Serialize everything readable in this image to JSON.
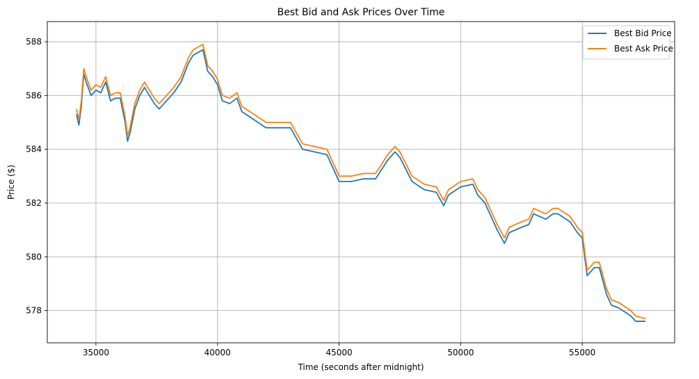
{
  "chart_data": {
    "type": "line",
    "title": "Best Bid and Ask Prices Over Time",
    "xlabel": "Time (seconds after midnight)",
    "ylabel": "Price ($)",
    "xlim": [
      33000,
      58800
    ],
    "ylim": [
      576.8,
      588.75
    ],
    "xticks": [
      35000,
      40000,
      45000,
      50000,
      55000
    ],
    "xtick_labels": [
      "35000",
      "40000",
      "45000",
      "50000",
      "55000"
    ],
    "yticks": [
      578,
      580,
      582,
      584,
      586,
      588
    ],
    "ytick_labels": [
      "578",
      "580",
      "582",
      "584",
      "586",
      "588"
    ],
    "grid": true,
    "legend_position": "top-right",
    "series": [
      {
        "name": "Best Bid Price",
        "color": "#1f77b4",
        "x": [
          34200,
          34300,
          34400,
          34500,
          34600,
          34800,
          35000,
          35200,
          35400,
          35600,
          35800,
          36000,
          36200,
          36300,
          36400,
          36600,
          36800,
          37000,
          37200,
          37400,
          37600,
          37800,
          38000,
          38200,
          38500,
          38800,
          39000,
          39200,
          39400,
          39600,
          39800,
          40000,
          40200,
          40500,
          40800,
          41000,
          41500,
          42000,
          42500,
          43000,
          43500,
          44000,
          44500,
          45000,
          45500,
          46000,
          46500,
          47000,
          47300,
          47500,
          48000,
          48500,
          49000,
          49300,
          49500,
          50000,
          50500,
          50700,
          51000,
          51500,
          51800,
          52000,
          52500,
          52800,
          53000,
          53500,
          53800,
          54000,
          54500,
          54800,
          55000,
          55200,
          55500,
          55700,
          56000,
          56200,
          56500,
          57000,
          57200,
          57600
        ],
        "values": [
          585.3,
          584.9,
          585.6,
          586.8,
          586.5,
          586.0,
          586.2,
          586.1,
          586.5,
          585.8,
          585.9,
          585.9,
          585.0,
          584.3,
          584.6,
          585.5,
          586.0,
          586.3,
          586.0,
          585.7,
          585.5,
          585.7,
          585.9,
          586.1,
          586.5,
          587.2,
          587.5,
          587.6,
          587.7,
          586.9,
          586.7,
          586.4,
          585.8,
          585.7,
          585.9,
          585.4,
          585.1,
          584.8,
          584.8,
          584.8,
          584.0,
          583.9,
          583.8,
          582.8,
          582.8,
          582.9,
          582.9,
          583.6,
          583.9,
          583.7,
          582.8,
          582.5,
          582.4,
          581.9,
          582.3,
          582.6,
          582.7,
          582.3,
          582.0,
          581.0,
          580.5,
          580.9,
          581.1,
          581.2,
          581.6,
          581.4,
          581.6,
          581.6,
          581.3,
          580.9,
          580.7,
          579.3,
          579.6,
          579.6,
          578.6,
          578.2,
          578.1,
          577.8,
          577.6,
          577.6
        ]
      },
      {
        "name": "Best Ask Price",
        "color": "#ff7f0e",
        "x": [
          34200,
          34300,
          34400,
          34500,
          34600,
          34800,
          35000,
          35200,
          35400,
          35600,
          35800,
          36000,
          36200,
          36300,
          36400,
          36600,
          36800,
          37000,
          37200,
          37400,
          37600,
          37800,
          38000,
          38200,
          38500,
          38800,
          39000,
          39200,
          39400,
          39600,
          39800,
          40000,
          40200,
          40500,
          40800,
          41000,
          41500,
          42000,
          42500,
          43000,
          43500,
          44000,
          44500,
          45000,
          45500,
          46000,
          46500,
          47000,
          47300,
          47500,
          48000,
          48500,
          49000,
          49300,
          49500,
          50000,
          50500,
          50700,
          51000,
          51500,
          51800,
          52000,
          52500,
          52800,
          53000,
          53500,
          53800,
          54000,
          54500,
          54800,
          55000,
          55200,
          55500,
          55700,
          56000,
          56200,
          56500,
          57000,
          57200,
          57600
        ],
        "values": [
          585.5,
          585.1,
          585.8,
          587.0,
          586.7,
          586.2,
          586.4,
          586.3,
          586.7,
          586.0,
          586.1,
          586.1,
          585.2,
          584.5,
          584.8,
          585.7,
          586.2,
          586.5,
          586.2,
          585.9,
          585.7,
          585.9,
          586.1,
          586.3,
          586.7,
          587.4,
          587.7,
          587.8,
          587.9,
          587.1,
          586.9,
          586.6,
          586.0,
          585.9,
          586.1,
          585.6,
          585.3,
          585.0,
          585.0,
          585.0,
          584.2,
          584.1,
          584.0,
          583.0,
          583.0,
          583.1,
          583.1,
          583.8,
          584.1,
          583.9,
          583.0,
          582.7,
          582.6,
          582.1,
          582.5,
          582.8,
          582.9,
          582.5,
          582.2,
          581.2,
          580.7,
          581.1,
          581.3,
          581.4,
          581.8,
          581.6,
          581.8,
          581.8,
          581.5,
          581.1,
          580.9,
          579.5,
          579.8,
          579.8,
          578.8,
          578.4,
          578.3,
          578.0,
          577.8,
          577.7
        ]
      }
    ]
  }
}
